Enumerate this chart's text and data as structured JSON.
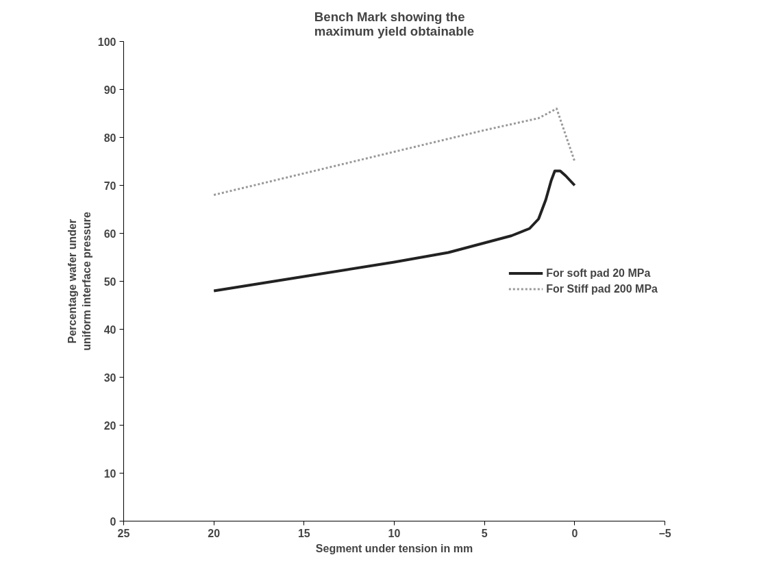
{
  "chart_data": {
    "type": "line",
    "title": "Bench Mark showing the\nmaximum yield obtainable",
    "xlabel": "Segment under tension in mm",
    "ylabel": "Percentage wafer under\nuniform interface pressure",
    "xlim": [
      25,
      -5
    ],
    "xticks": [
      25,
      20,
      15,
      10,
      5,
      0,
      -5
    ],
    "ylim": [
      0,
      100
    ],
    "yticks": [
      0,
      10,
      20,
      30,
      40,
      50,
      60,
      70,
      80,
      90,
      100
    ],
    "grid": false,
    "legend": "right",
    "marker": "none",
    "series": [
      {
        "name": "For soft pad 20 MPa",
        "color": "#222222",
        "line_style": "solid",
        "x": [
          20,
          15,
          10,
          7,
          5,
          3.5,
          2.5,
          2,
          1.6,
          1.3,
          1.1,
          0.8,
          0.5,
          0
        ],
        "values": [
          48,
          51,
          54,
          56,
          58,
          59.5,
          61,
          63,
          67,
          71,
          73,
          73,
          72,
          70
        ]
      },
      {
        "name": "For Stiff pad 200 MPa",
        "color": "#999999",
        "line_style": "dashed",
        "x": [
          20,
          15,
          10,
          5,
          2,
          1,
          0
        ],
        "values": [
          68,
          72.5,
          77,
          81.5,
          84,
          86,
          75
        ]
      }
    ]
  }
}
